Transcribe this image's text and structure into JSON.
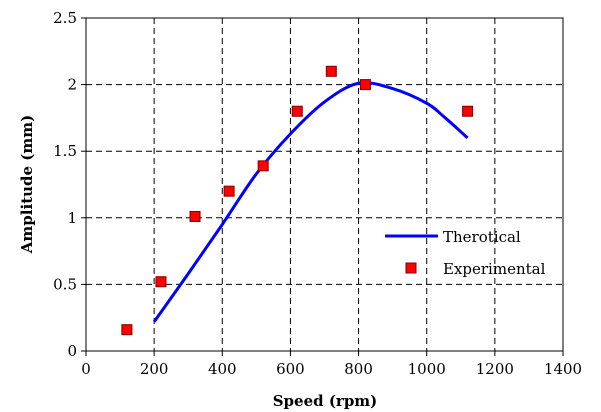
{
  "chart_data": {
    "type": "line",
    "xlabel": "Speed (rpm)",
    "ylabel": "Amplitude (mm)",
    "xlim": [
      0,
      1400
    ],
    "ylim": [
      0,
      2.5
    ],
    "x_ticks": [
      "0",
      "200",
      "400",
      "600",
      "800",
      "1000",
      "1200",
      "1400"
    ],
    "y_ticks": [
      "0",
      "0.5",
      "1",
      "1.5",
      "2",
      "2.5"
    ],
    "grid": true,
    "legend_position": "right",
    "series": [
      {
        "name": "Therotical",
        "kind": "line",
        "color": "#0000ff",
        "x": [
          200,
          300,
          400,
          500,
          600,
          700,
          800,
          900,
          1000,
          1050,
          1120
        ],
        "y": [
          0.22,
          0.58,
          0.95,
          1.33,
          1.63,
          1.87,
          2.01,
          1.97,
          1.86,
          1.76,
          1.6
        ]
      },
      {
        "name": "Experimental",
        "kind": "scatter",
        "marker": "square",
        "color": "#ff0000",
        "edge_color": "#800000",
        "x": [
          120,
          220,
          320,
          420,
          520,
          620,
          720,
          820,
          1120
        ],
        "y": [
          0.16,
          0.52,
          1.01,
          1.2,
          1.39,
          1.8,
          2.1,
          2.0,
          1.8
        ]
      }
    ]
  }
}
